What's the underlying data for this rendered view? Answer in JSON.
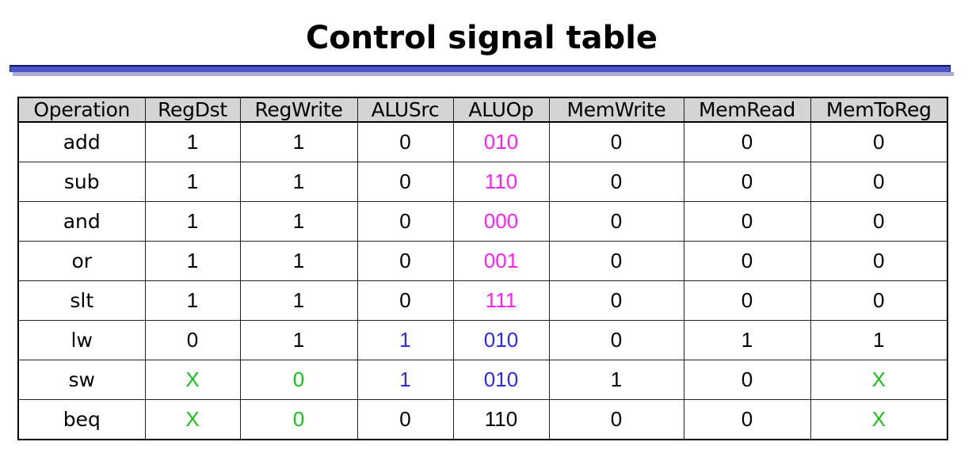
{
  "title": "Control signal table",
  "colors": {
    "magenta": "#ff1ff5",
    "blue": "#2a2ae8",
    "green": "#16c216",
    "black": "#000000",
    "header_bg": "#d4d4d4",
    "title_bar": "#4a56c8"
  },
  "table": {
    "columns": [
      "Operation",
      "RegDst",
      "RegWrite",
      "ALUSrc",
      "ALUOp",
      "MemWrite",
      "MemRead",
      "MemToReg"
    ],
    "rows": [
      {
        "op": "add",
        "cells": [
          {
            "v": "1",
            "c": "black"
          },
          {
            "v": "1",
            "c": "black"
          },
          {
            "v": "0",
            "c": "black"
          },
          {
            "v": "010",
            "c": "magenta"
          },
          {
            "v": "0",
            "c": "black"
          },
          {
            "v": "0",
            "c": "black"
          },
          {
            "v": "0",
            "c": "black"
          }
        ]
      },
      {
        "op": "sub",
        "cells": [
          {
            "v": "1",
            "c": "black"
          },
          {
            "v": "1",
            "c": "black"
          },
          {
            "v": "0",
            "c": "black"
          },
          {
            "v": "110",
            "c": "magenta"
          },
          {
            "v": "0",
            "c": "black"
          },
          {
            "v": "0",
            "c": "black"
          },
          {
            "v": "0",
            "c": "black"
          }
        ]
      },
      {
        "op": "and",
        "cells": [
          {
            "v": "1",
            "c": "black"
          },
          {
            "v": "1",
            "c": "black"
          },
          {
            "v": "0",
            "c": "black"
          },
          {
            "v": "000",
            "c": "magenta"
          },
          {
            "v": "0",
            "c": "black"
          },
          {
            "v": "0",
            "c": "black"
          },
          {
            "v": "0",
            "c": "black"
          }
        ]
      },
      {
        "op": "or",
        "cells": [
          {
            "v": "1",
            "c": "black"
          },
          {
            "v": "1",
            "c": "black"
          },
          {
            "v": "0",
            "c": "black"
          },
          {
            "v": "001",
            "c": "magenta"
          },
          {
            "v": "0",
            "c": "black"
          },
          {
            "v": "0",
            "c": "black"
          },
          {
            "v": "0",
            "c": "black"
          }
        ]
      },
      {
        "op": "slt",
        "cells": [
          {
            "v": "1",
            "c": "black"
          },
          {
            "v": "1",
            "c": "black"
          },
          {
            "v": "0",
            "c": "black"
          },
          {
            "v": "111",
            "c": "magenta"
          },
          {
            "v": "0",
            "c": "black"
          },
          {
            "v": "0",
            "c": "black"
          },
          {
            "v": "0",
            "c": "black"
          }
        ]
      },
      {
        "op": "lw",
        "cells": [
          {
            "v": "0",
            "c": "black"
          },
          {
            "v": "1",
            "c": "black"
          },
          {
            "v": "1",
            "c": "blue"
          },
          {
            "v": "010",
            "c": "blue"
          },
          {
            "v": "0",
            "c": "black"
          },
          {
            "v": "1",
            "c": "black"
          },
          {
            "v": "1",
            "c": "black"
          }
        ]
      },
      {
        "op": "sw",
        "cells": [
          {
            "v": "X",
            "c": "green"
          },
          {
            "v": "0",
            "c": "green"
          },
          {
            "v": "1",
            "c": "blue"
          },
          {
            "v": "010",
            "c": "blue"
          },
          {
            "v": "1",
            "c": "black"
          },
          {
            "v": "0",
            "c": "black"
          },
          {
            "v": "X",
            "c": "green"
          }
        ]
      },
      {
        "op": "beq",
        "cells": [
          {
            "v": "X",
            "c": "green"
          },
          {
            "v": "0",
            "c": "green"
          },
          {
            "v": "0",
            "c": "black"
          },
          {
            "v": "110",
            "c": "black"
          },
          {
            "v": "0",
            "c": "black"
          },
          {
            "v": "0",
            "c": "black"
          },
          {
            "v": "X",
            "c": "green"
          }
        ]
      }
    ]
  }
}
